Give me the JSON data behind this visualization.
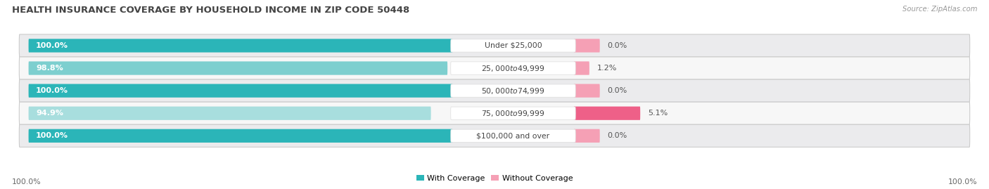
{
  "title": "HEALTH INSURANCE COVERAGE BY HOUSEHOLD INCOME IN ZIP CODE 50448",
  "source": "Source: ZipAtlas.com",
  "categories": [
    "Under $25,000",
    "$25,000 to $49,999",
    "$50,000 to $74,999",
    "$75,000 to $99,999",
    "$100,000 and over"
  ],
  "with_coverage": [
    100.0,
    98.8,
    100.0,
    94.9,
    100.0
  ],
  "without_coverage": [
    0.0,
    1.2,
    0.0,
    5.1,
    0.0
  ],
  "color_with_full": "#2BB5B8",
  "color_with_light": "#7DCFCF",
  "color_without_light": "#F5A0B5",
  "color_without_strong": "#EE6088",
  "row_bg_dark": "#E8E8EA",
  "row_bg_light": "#F5F5F5",
  "background": "#FFFFFF",
  "legend_with": "With Coverage",
  "legend_without": "Without Coverage",
  "left_label": "100.0%",
  "right_label": "100.0%",
  "title_fontsize": 9.5,
  "bar_label_fontsize": 8.0,
  "pct_fontsize": 8.0,
  "cat_fontsize": 7.8
}
